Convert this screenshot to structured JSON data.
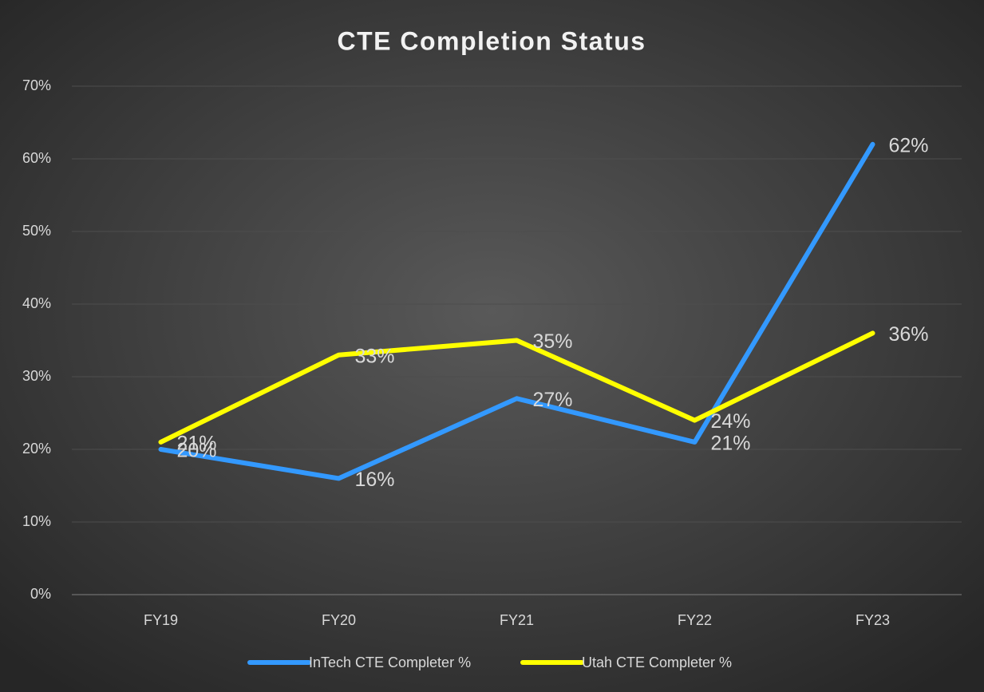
{
  "chart_data": {
    "type": "line",
    "title": "CTE Completion Status",
    "categories": [
      "FY19",
      "FY20",
      "FY21",
      "FY22",
      "FY23"
    ],
    "series": [
      {
        "name": "InTech CTE Completer %",
        "color": "#3399ff",
        "values": [
          20,
          16,
          27,
          21,
          62
        ],
        "value_labels": [
          "20%",
          "16%",
          "27%",
          "21%",
          "62%"
        ]
      },
      {
        "name": "Utah CTE Completer %",
        "color": "#ffff00",
        "values": [
          21,
          33,
          35,
          24,
          36
        ],
        "value_labels": [
          "21%",
          "33%",
          "35%",
          "24%",
          "36%"
        ]
      }
    ],
    "ylim": [
      0,
      70
    ],
    "yticks": [
      {
        "value": 0,
        "label": "0%"
      },
      {
        "value": 10,
        "label": "10%"
      },
      {
        "value": 20,
        "label": "20%"
      },
      {
        "value": 30,
        "label": "30%"
      },
      {
        "value": 40,
        "label": "40%"
      },
      {
        "value": 50,
        "label": "50%"
      },
      {
        "value": 60,
        "label": "60%"
      },
      {
        "value": 70,
        "label": "70%"
      }
    ],
    "grid": true,
    "legend": "bottom"
  }
}
